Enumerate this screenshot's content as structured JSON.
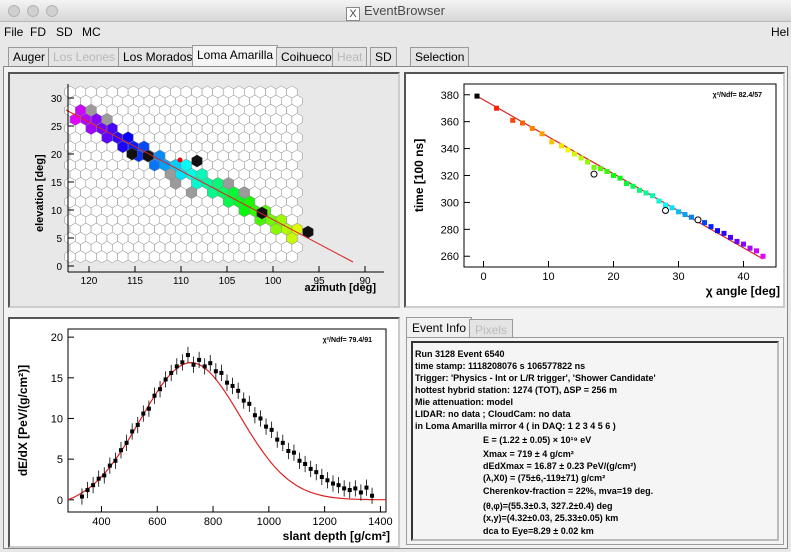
{
  "window": {
    "title": "EventBrowser"
  },
  "menu": {
    "items": [
      "File",
      "FD",
      "SD",
      "MC"
    ],
    "help": "Hel"
  },
  "tabs": [
    {
      "label": "Auger",
      "state": "normal"
    },
    {
      "label": "Los Leones",
      "state": "disabled"
    },
    {
      "label": "Los Morados",
      "state": "normal"
    },
    {
      "label": "Loma Amarilla",
      "state": "active"
    },
    {
      "label": "Coihueco",
      "state": "normal"
    },
    {
      "label": "Heat",
      "state": "disabled"
    },
    {
      "label": "SD",
      "state": "normal"
    },
    {
      "label": "Selection",
      "state": "normal"
    }
  ],
  "camera_plot": {
    "ylabel": "elevation  [deg]",
    "xlabel": "azimuth  [deg]",
    "xticks": [
      "120",
      "115",
      "110",
      "105",
      "100",
      "95",
      "90"
    ],
    "yticks": [
      "0",
      "5",
      "10",
      "15",
      "20",
      "25",
      "30"
    ]
  },
  "info_tabs": [
    {
      "label": "Event Info",
      "state": "active"
    },
    {
      "label": "Pixels",
      "state": "disabled"
    }
  ],
  "event_info": {
    "lines": [
      "Run 3128 Event 6540",
      "time stamp: 1118208076 s 106577822 ns",
      "Trigger: 'Physics - Int or L/R trigger', 'Shower Candidate'",
      "hottest hybrid station: 1274 (TOT), ∆SP = 256 m",
      "Mie attenuation: model",
      "LIDAR: no data ; CloudCam: no data",
      "in Loma Amarilla mirror 4 ( in DAQ:  1 2 3 4 5 6 )"
    ],
    "reco_lines": [
      "E = (1.22 ± 0.05) × 10¹⁹ eV",
      "Xmax = 719 ± 4 g/cm²",
      "dEdXmax = 16.87 ± 0.23 PeV/(g/cm²)",
      "(λ,X0) = (75±6,-119±71) g/cm²",
      "Cherenkov-fraction = 22%, mva=19 deg.",
      "(θ,φ)=(55.3±0.3, 327.2±0.4) deg",
      "(x,y)=(4.32±0.03, 25.33±0.05) km",
      "dca to Eye=8.29 ± 0.02 km"
    ]
  },
  "chart_data": [
    {
      "type": "scatter",
      "title": "",
      "xlabel": "χ angle [deg]",
      "ylabel": "time [100 ns]",
      "annotation": "χ²/Ndf=   82.4/57",
      "xlim": [
        -3,
        45
      ],
      "ylim": [
        252,
        388
      ],
      "xticks": [
        0,
        10,
        20,
        30,
        40
      ],
      "yticks": [
        260,
        280,
        300,
        320,
        340,
        360,
        380
      ],
      "fit_line": {
        "x": [
          -1,
          43
        ],
        "y": [
          379,
          258
        ]
      },
      "points": {
        "x": [
          -1,
          2,
          4.5,
          6,
          7.5,
          9,
          10.5,
          12,
          13,
          14,
          15,
          16,
          17,
          18,
          19,
          20,
          21,
          22,
          23,
          24,
          25,
          26,
          27,
          28,
          29,
          30,
          31,
          32,
          33,
          34,
          35,
          36,
          37,
          38,
          39,
          40,
          41,
          42,
          43
        ],
        "y": [
          379,
          370,
          361,
          359,
          355,
          351,
          345,
          342,
          339,
          336,
          333,
          330,
          326,
          325,
          323,
          320,
          318,
          314,
          312,
          309,
          307,
          305,
          301,
          298,
          296,
          293,
          291,
          289,
          287,
          285,
          282,
          279,
          277,
          274,
          271,
          269,
          266,
          264,
          260
        ]
      },
      "open_points": {
        "x": [
          17,
          28,
          33
        ],
        "y": [
          321,
          294,
          287
        ]
      }
    },
    {
      "type": "scatter",
      "title": "",
      "xlabel": "slant depth [g/cm²]",
      "ylabel": "dE/dX [PeV/(g/cm²)]",
      "annotation": "χ²/Ndf=   79.4/91",
      "xlim": [
        280,
        1420
      ],
      "ylim": [
        -1.5,
        21
      ],
      "xticks": [
        400,
        600,
        800,
        1000,
        1200,
        1400
      ],
      "yticks": [
        0,
        5,
        10,
        15,
        20
      ],
      "gaisser_hillas": {
        "xmax": 719,
        "ymax": 16.87
      },
      "points": {
        "x": [
          330,
          350,
          370,
          390,
          410,
          430,
          450,
          470,
          490,
          510,
          530,
          550,
          570,
          590,
          610,
          630,
          650,
          670,
          690,
          710,
          730,
          750,
          770,
          790,
          810,
          830,
          850,
          870,
          890,
          910,
          930,
          950,
          970,
          990,
          1010,
          1030,
          1050,
          1070,
          1090,
          1110,
          1130,
          1150,
          1170,
          1190,
          1210,
          1230,
          1250,
          1270,
          1290,
          1310,
          1330,
          1350,
          1370
        ],
        "y": [
          0.4,
          1.2,
          1.8,
          2.6,
          3.0,
          4.2,
          4.8,
          6.1,
          7.0,
          8.4,
          9.2,
          10.6,
          11.2,
          12.8,
          13.6,
          14.8,
          15.6,
          16.4,
          16.9,
          17.8,
          16.6,
          17.2,
          16.4,
          16.8,
          15.8,
          15.6,
          14.4,
          14.0,
          13.4,
          12.2,
          11.8,
          10.4,
          10.0,
          9.0,
          8.6,
          7.4,
          7.0,
          6.0,
          5.8,
          4.8,
          4.4,
          3.8,
          3.4,
          2.8,
          2.4,
          2.0,
          1.8,
          1.4,
          1.2,
          1.4,
          0.9,
          1.5,
          0.5
        ]
      }
    }
  ]
}
